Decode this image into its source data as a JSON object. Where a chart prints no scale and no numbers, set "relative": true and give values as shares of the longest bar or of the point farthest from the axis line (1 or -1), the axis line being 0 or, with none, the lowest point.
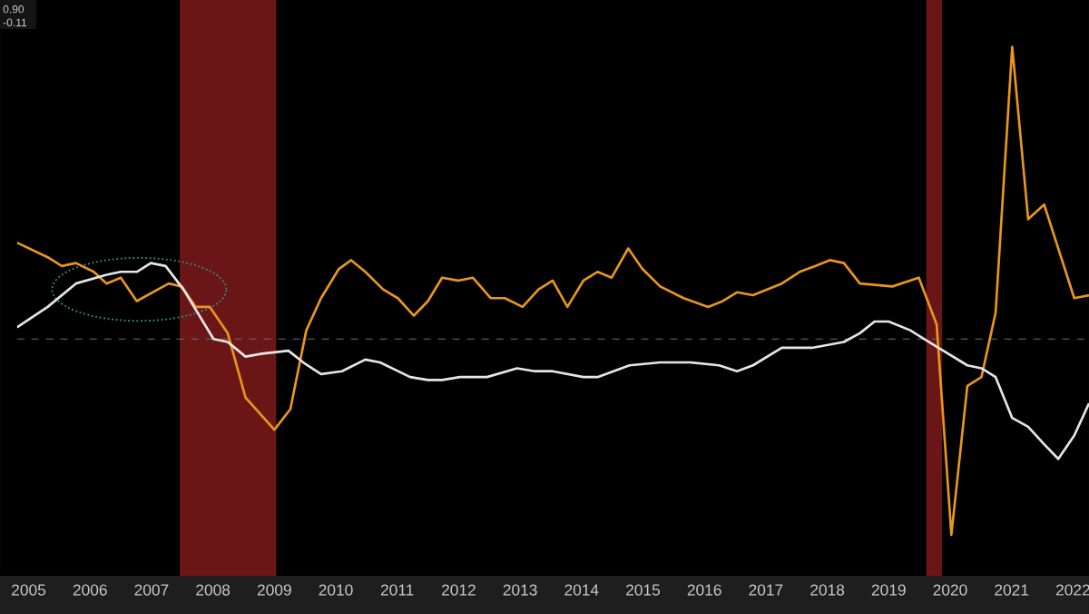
{
  "chart_data": {
    "type": "line",
    "relative": true,
    "xlim": [
      2005.31,
      2022.76
    ],
    "xticks": [
      {
        "value": 2005.5,
        "label": "2005"
      },
      {
        "value": 2006.5,
        "label": "2006"
      },
      {
        "value": 2007.5,
        "label": "2007"
      },
      {
        "value": 2008.5,
        "label": "2008"
      },
      {
        "value": 2009.5,
        "label": "2009"
      },
      {
        "value": 2010.5,
        "label": "2010"
      },
      {
        "value": 2011.5,
        "label": "2011"
      },
      {
        "value": 2012.5,
        "label": "2012"
      },
      {
        "value": 2013.5,
        "label": "2013"
      },
      {
        "value": 2014.5,
        "label": "2014"
      },
      {
        "value": 2015.5,
        "label": "2015"
      },
      {
        "value": 2016.5,
        "label": "2016"
      },
      {
        "value": 2017.5,
        "label": "2017"
      },
      {
        "value": 2018.5,
        "label": "2018"
      },
      {
        "value": 2019.5,
        "label": "2019"
      },
      {
        "value": 2020.5,
        "label": "2020"
      },
      {
        "value": 2021.5,
        "label": "2021"
      },
      {
        "value": 2022.5,
        "label": "2022"
      }
    ],
    "tick_labels": "x",
    "series": [
      {
        "color": "#e8961e",
        "x": [
          2005.31,
          2005.81,
          2006.04,
          2006.27,
          2006.56,
          2006.77,
          2007.0,
          2007.26,
          2007.78,
          2007.99,
          2008.22,
          2008.45,
          2008.74,
          2009.03,
          2009.5,
          2009.76,
          2010.02,
          2010.26,
          2010.55,
          2010.75,
          2010.98,
          2011.27,
          2011.51,
          2011.77,
          2012.0,
          2012.23,
          2012.49,
          2012.73,
          2013.02,
          2013.25,
          2013.54,
          2013.8,
          2014.03,
          2014.27,
          2014.53,
          2014.76,
          2014.99,
          2015.26,
          2015.49,
          2015.78,
          2016.16,
          2016.56,
          2016.8,
          2017.03,
          2017.29,
          2017.76,
          2018.05,
          2018.31,
          2018.54,
          2018.77,
          2019.03,
          2019.56,
          2019.99,
          2020.28,
          2020.52,
          2020.78,
          2021.01,
          2021.24,
          2021.51,
          2021.77,
          2022.03,
          2022.52,
          2022.76
        ],
        "values": [
          0.33,
          0.28,
          0.25,
          0.26,
          0.23,
          0.19,
          0.21,
          0.13,
          0.19,
          0.18,
          0.11,
          0.11,
          0.02,
          -0.2,
          -0.31,
          -0.24,
          0.03,
          0.14,
          0.24,
          0.27,
          0.23,
          0.17,
          0.14,
          0.08,
          0.13,
          0.21,
          0.2,
          0.21,
          0.14,
          0.14,
          0.11,
          0.17,
          0.2,
          0.11,
          0.2,
          0.23,
          0.21,
          0.31,
          0.24,
          0.18,
          0.14,
          0.11,
          0.13,
          0.16,
          0.15,
          0.19,
          0.23,
          0.25,
          0.27,
          0.26,
          0.19,
          0.18,
          0.21,
          0.05,
          -0.67,
          -0.16,
          -0.13,
          0.09,
          1.0,
          0.41,
          0.46,
          0.14,
          0.15
        ]
      },
      {
        "color": "#e6e6e6",
        "x": [
          2005.31,
          2005.81,
          2006.27,
          2006.77,
          2007.0,
          2007.26,
          2007.49,
          2007.73,
          2008.02,
          2008.51,
          2008.74,
          2009.03,
          2009.3,
          2009.73,
          2009.97,
          2010.26,
          2010.6,
          2010.98,
          2011.22,
          2011.71,
          2012.0,
          2012.23,
          2012.52,
          2012.96,
          2013.45,
          2013.74,
          2014.03,
          2014.53,
          2014.76,
          2015.28,
          2015.78,
          2016.27,
          2016.74,
          2017.03,
          2017.29,
          2017.76,
          2018.25,
          2018.77,
          2019.03,
          2019.27,
          2019.5,
          2019.85,
          2020.23,
          2020.78,
          2021.01,
          2021.24,
          2021.51,
          2021.77,
          2022.03,
          2022.26,
          2022.52,
          2022.76
        ],
        "values": [
          0.04,
          0.11,
          0.19,
          0.22,
          0.23,
          0.23,
          0.26,
          0.25,
          0.17,
          0.0,
          -0.01,
          -0.06,
          -0.05,
          -0.04,
          -0.08,
          -0.12,
          -0.11,
          -0.07,
          -0.08,
          -0.13,
          -0.14,
          -0.14,
          -0.13,
          -0.13,
          -0.1,
          -0.11,
          -0.11,
          -0.13,
          -0.13,
          -0.09,
          -0.08,
          -0.08,
          -0.09,
          -0.11,
          -0.09,
          -0.03,
          -0.03,
          -0.01,
          0.02,
          0.06,
          0.06,
          0.03,
          -0.02,
          -0.09,
          -0.1,
          -0.13,
          -0.27,
          -0.3,
          -0.36,
          -0.41,
          -0.33,
          -0.22
        ]
      }
    ],
    "ref_lines": [
      {
        "axis": "y",
        "value": 0,
        "color": "#6e6e6e",
        "line_style": "dashed"
      }
    ],
    "bands": [
      {
        "axis": "x",
        "from": 2007.96,
        "to": 2009.53,
        "color": "#6b1616"
      },
      {
        "axis": "x",
        "from": 2020.11,
        "to": 2020.37,
        "color": "#6b1616"
      }
    ],
    "annotations": [
      "0.90",
      "-0.11"
    ]
  }
}
